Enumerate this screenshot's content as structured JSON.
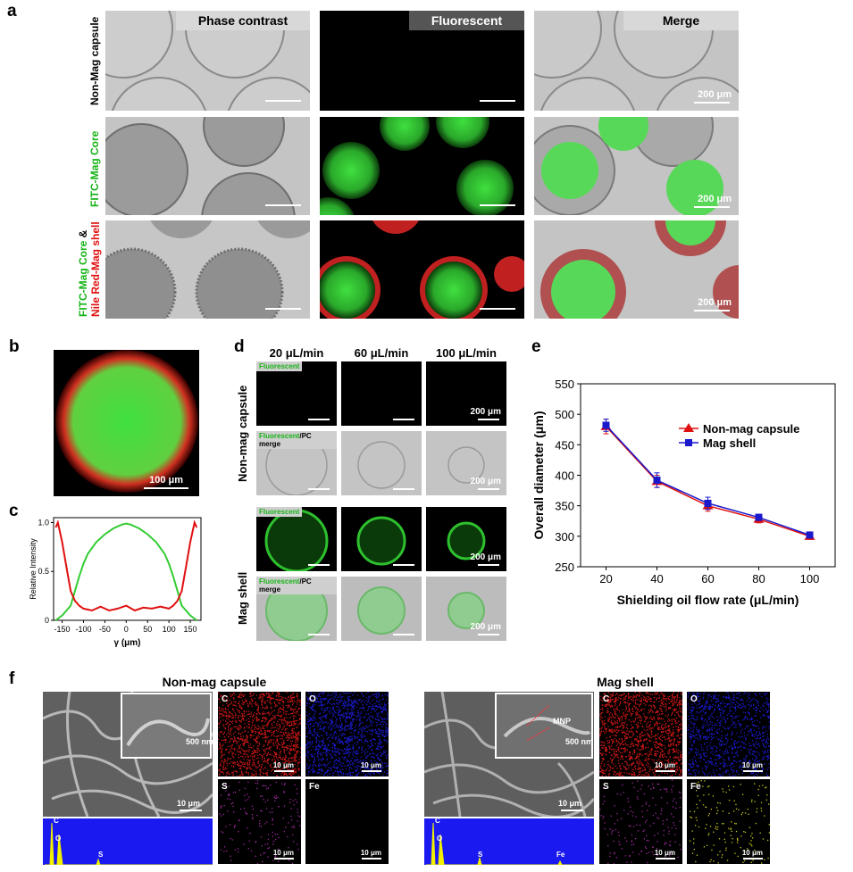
{
  "panels": {
    "a": "a",
    "b": "b",
    "c": "c",
    "d": "d",
    "e": "e",
    "f": "f"
  },
  "panel_a": {
    "columns": [
      "Phase contrast",
      "Fluorescent",
      "Merge"
    ],
    "row1_label": "Non-Mag capsule",
    "row2_label": "FITC-Mag Core",
    "row3_label_part1": "FITC-Mag Core",
    "row3_label_amp": " & ",
    "row3_label_part2": "Nile Red-Mag shell",
    "scale": "200 μm"
  },
  "panel_b": {
    "scale": "100 μm"
  },
  "panel_c": {
    "chart_data": {
      "type": "line",
      "xlabel": "γ (μm)",
      "ylabel": "Relative Intensity",
      "xticks": [
        -150,
        -100,
        -50,
        0,
        50,
        100,
        150
      ],
      "yticks": [
        0,
        0.5,
        1.0
      ],
      "ytick_labels": [
        "0",
        "0.5",
        "1.0"
      ],
      "xlim": [
        -170,
        175
      ],
      "ylim": [
        0,
        1.05
      ],
      "series": [
        {
          "color": "#33cc33",
          "x": [
            -165,
            -150,
            -130,
            -110,
            -100,
            -90,
            -70,
            -50,
            -30,
            -10,
            0,
            10,
            30,
            50,
            70,
            90,
            100,
            110,
            130,
            150,
            165
          ],
          "y": [
            0.0,
            0.05,
            0.15,
            0.45,
            0.58,
            0.68,
            0.8,
            0.88,
            0.94,
            0.98,
            0.99,
            0.98,
            0.94,
            0.88,
            0.8,
            0.68,
            0.58,
            0.45,
            0.15,
            0.05,
            0.0
          ]
        },
        {
          "color": "#e01010",
          "x": [
            -165,
            -160,
            -150,
            -140,
            -130,
            -120,
            -110,
            -100,
            -80,
            -60,
            -40,
            -20,
            0,
            20,
            40,
            60,
            80,
            100,
            110,
            120,
            130,
            140,
            150,
            160,
            165
          ],
          "y": [
            0.95,
            1.0,
            0.8,
            0.55,
            0.3,
            0.2,
            0.15,
            0.12,
            0.1,
            0.14,
            0.1,
            0.12,
            0.15,
            0.1,
            0.13,
            0.12,
            0.14,
            0.12,
            0.15,
            0.2,
            0.3,
            0.55,
            0.8,
            1.0,
            0.95
          ]
        }
      ]
    }
  },
  "panel_d": {
    "columns": [
      "20 μL/min",
      "60 μL/min",
      "100 μL/min"
    ],
    "row_group1": "Non-mag capsule",
    "row_group2": "Mag shell",
    "tag_fluor": "Fluorescent",
    "tag_merge_a": "Fluorescent",
    "tag_merge_b": "/PC merge",
    "scale": "200 μm"
  },
  "panel_e": {
    "chart_data": {
      "type": "line",
      "xlabel": "Shielding oil flow rate (μL/min)",
      "ylabel": "Overall diameter (μm)",
      "x": [
        20,
        40,
        60,
        80,
        100
      ],
      "xlim": [
        10,
        110
      ],
      "ylim": [
        250,
        550
      ],
      "yticks": [
        250,
        300,
        350,
        400,
        450,
        500,
        550
      ],
      "xticks": [
        20,
        40,
        60,
        80,
        100
      ],
      "legend_position": "top-right",
      "series": [
        {
          "name": "Non-mag capsule",
          "color": "#e01010",
          "marker": "triangle",
          "values": [
            480,
            390,
            350,
            328,
            300
          ],
          "errors": [
            12,
            10,
            9,
            6,
            5
          ]
        },
        {
          "name": "Mag shell",
          "color": "#1a1acc",
          "marker": "square",
          "values": [
            482,
            392,
            354,
            331,
            302
          ],
          "errors": [
            10,
            12,
            10,
            5,
            4
          ]
        }
      ]
    }
  },
  "panel_f": {
    "left_title": "Non-mag capsule",
    "right_title": "Mag shell",
    "inset_scale": "500 nm",
    "scale": "10 μm",
    "maps_left": [
      "C",
      "O",
      "S",
      "Fe"
    ],
    "maps_right": [
      "C",
      "O",
      "S",
      "Fe"
    ],
    "mnp_label": "MNP",
    "eds_left_peaks": [
      "C",
      "O",
      "S"
    ],
    "eds_right_peaks": [
      "C",
      "O",
      "S",
      "Fe"
    ]
  }
}
